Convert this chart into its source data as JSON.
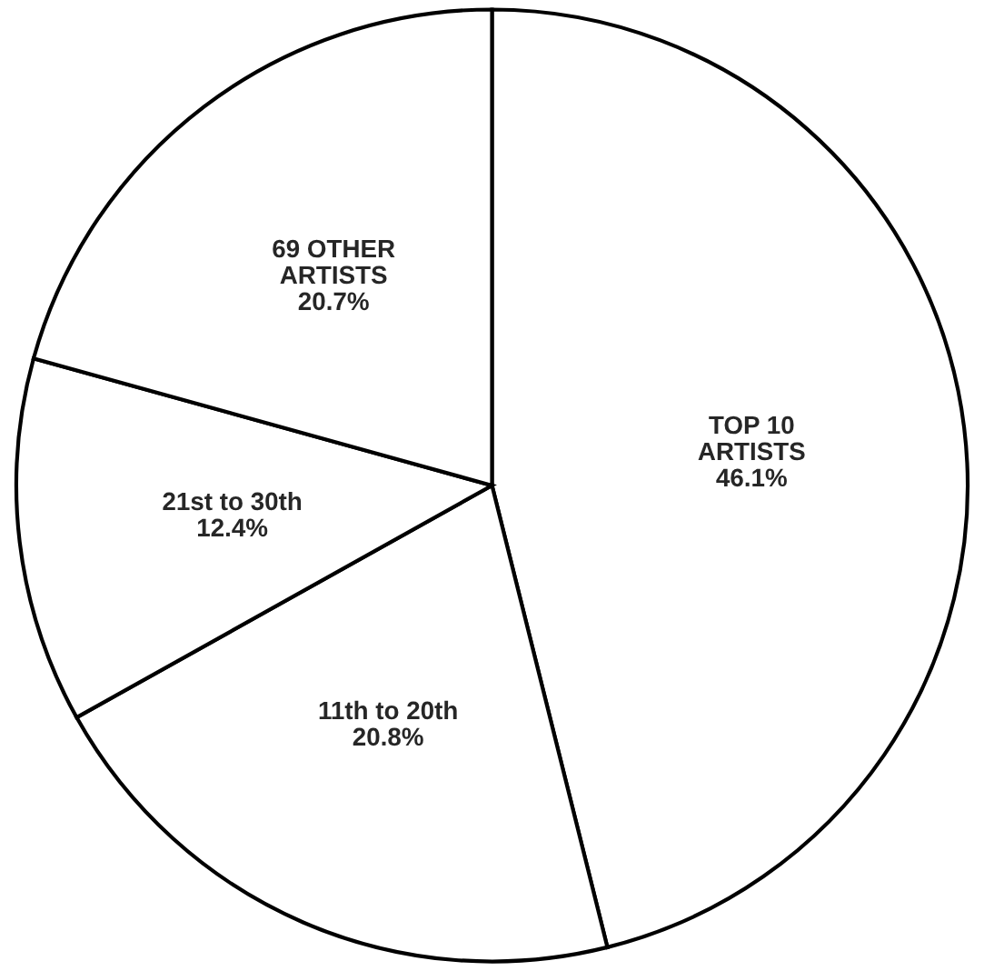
{
  "chart_data": {
    "type": "pie",
    "categories": [
      "TOP 10\nARTISTS",
      "11th to 20th",
      "21st to 30th",
      "69 OTHER\nARTISTS"
    ],
    "values": [
      46.1,
      20.8,
      12.4,
      20.7
    ],
    "value_labels": [
      "46.1%",
      "20.8%",
      "12.4%",
      "20.7%"
    ],
    "colors": [
      "#ffffff",
      "#ffffff",
      "#ffffff",
      "#ffffff"
    ],
    "legend": false
  }
}
